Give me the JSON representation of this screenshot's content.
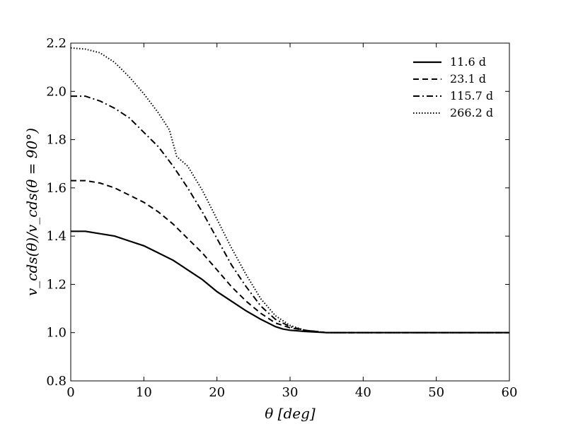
{
  "chart_data": {
    "type": "line",
    "title": "",
    "xlabel": "θ [deg]",
    "ylabel": "v_cds(θ)/v_cds(θ = 90°)",
    "xlim": [
      0,
      60
    ],
    "ylim": [
      0.8,
      2.2
    ],
    "x_ticks": [
      "0",
      "10",
      "20",
      "30",
      "40",
      "50",
      "60"
    ],
    "y_ticks": [
      "0.8",
      "1.0",
      "1.2",
      "1.4",
      "1.6",
      "1.8",
      "2.0",
      "2.2"
    ],
    "grid": false,
    "legend": "top-right",
    "series": [
      {
        "name": "11.6 d",
        "style": "solid",
        "x": [
          0,
          2,
          4,
          6,
          8,
          10,
          12,
          14,
          16,
          18,
          20,
          22,
          24,
          26,
          28,
          29,
          30,
          32,
          35,
          40,
          50,
          60
        ],
        "y": [
          1.42,
          1.42,
          1.41,
          1.4,
          1.38,
          1.36,
          1.33,
          1.3,
          1.26,
          1.22,
          1.17,
          1.13,
          1.09,
          1.055,
          1.025,
          1.015,
          1.01,
          1.005,
          1.0,
          1.0,
          1.0,
          1.0
        ]
      },
      {
        "name": "23.1 d",
        "style": "dashed",
        "x": [
          0,
          2,
          4,
          6,
          8,
          10,
          12,
          14,
          16,
          18,
          20,
          22,
          24,
          26,
          28,
          30,
          32,
          35,
          40,
          50,
          60
        ],
        "y": [
          1.63,
          1.63,
          1.62,
          1.6,
          1.57,
          1.54,
          1.5,
          1.45,
          1.39,
          1.33,
          1.26,
          1.19,
          1.13,
          1.08,
          1.04,
          1.02,
          1.01,
          1.0,
          1.0,
          1.0,
          1.0
        ]
      },
      {
        "name": "115.7 d",
        "style": "dashdot",
        "x": [
          0,
          2,
          4,
          6,
          8,
          10,
          12,
          14,
          16,
          18,
          20,
          22,
          24,
          26,
          28,
          30,
          32,
          35,
          40,
          50,
          60
        ],
        "y": [
          1.98,
          1.98,
          1.96,
          1.93,
          1.89,
          1.83,
          1.77,
          1.69,
          1.6,
          1.5,
          1.39,
          1.28,
          1.19,
          1.11,
          1.055,
          1.025,
          1.01,
          1.0,
          1.0,
          1.0,
          1.0
        ]
      },
      {
        "name": "266.2 d",
        "style": "dotted",
        "x": [
          0,
          2,
          4,
          6,
          8,
          10,
          12,
          13.5,
          14.5,
          16,
          18,
          20,
          22,
          24,
          26,
          28,
          30,
          32,
          35,
          40,
          50,
          60
        ],
        "y": [
          2.18,
          2.175,
          2.16,
          2.12,
          2.06,
          1.99,
          1.91,
          1.84,
          1.73,
          1.69,
          1.59,
          1.47,
          1.35,
          1.24,
          1.14,
          1.07,
          1.03,
          1.01,
          1.0,
          1.0,
          1.0,
          1.0
        ]
      }
    ]
  }
}
